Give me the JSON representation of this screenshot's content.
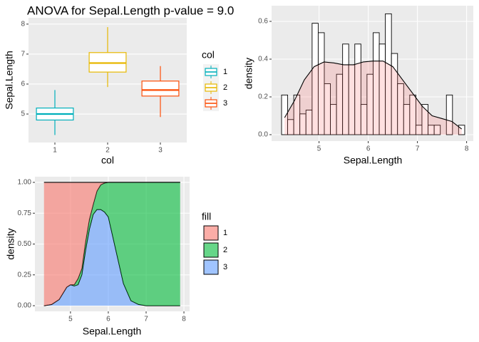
{
  "chart_data": [
    {
      "type": "boxplot",
      "title": "ANOVA for Sepal.Length p-value = 9.0",
      "x_label": "col",
      "y_label": "Sepal.Length",
      "legend_title": "col",
      "categories": [
        "1",
        "2",
        "3"
      ],
      "colors": [
        "#00AFBB",
        "#E7B800",
        "#FC4E07"
      ],
      "boxes": [
        {
          "min": 4.3,
          "q1": 4.8,
          "median": 5.0,
          "q3": 5.2,
          "max": 5.8
        },
        {
          "min": 5.9,
          "q1": 6.4,
          "median": 6.7,
          "q3": 7.05,
          "max": 7.9
        },
        {
          "min": 4.9,
          "q1": 5.6,
          "median": 5.8,
          "q3": 6.1,
          "max": 6.6
        }
      ],
      "ylim": [
        4.05,
        8.21
      ],
      "yticks": [
        5,
        6,
        7,
        8
      ],
      "grid": true
    },
    {
      "type": "histogram",
      "x_label": "Sepal.Length",
      "y_label": "density",
      "bins": [
        4.238,
        4.362,
        4.486,
        4.61,
        4.734,
        4.859,
        4.983,
        5.107,
        5.231,
        5.355,
        5.479,
        5.603,
        5.727,
        5.851,
        5.975,
        6.1,
        6.224,
        6.348,
        6.472,
        6.596,
        6.72,
        6.844,
        6.968,
        7.092,
        7.216,
        7.341,
        7.465,
        7.589,
        7.713,
        7.837,
        7.961
      ],
      "values": [
        0.21,
        0.08,
        0.21,
        0.11,
        0.13,
        0.59,
        0.54,
        0.27,
        0.16,
        0.32,
        0.48,
        0.37,
        0.48,
        0.16,
        0.32,
        0.54,
        0.48,
        0.64,
        0.43,
        0.27,
        0.16,
        0.21,
        0.05,
        0.16,
        0.05,
        0.05,
        0,
        0.21,
        0,
        0.05
      ],
      "bar_color": "#FFFFFF",
      "edge_color": "#000000",
      "density": {
        "x": [
          4.3,
          4.5,
          4.7,
          4.9,
          5.1,
          5.3,
          5.5,
          5.7,
          5.9,
          6.1,
          6.3,
          6.5,
          6.7,
          6.9,
          7.1,
          7.3,
          7.5,
          7.7,
          7.9
        ],
        "values": [
          0.09,
          0.18,
          0.29,
          0.36,
          0.385,
          0.38,
          0.37,
          0.37,
          0.385,
          0.39,
          0.39,
          0.36,
          0.29,
          0.22,
          0.15,
          0.1,
          0.085,
          0.07,
          0.03
        ],
        "color": "#FF6666"
      },
      "xlim": [
        4.035,
        8.136
      ],
      "ylim": [
        -0.034,
        0.683
      ],
      "xticks": [
        5,
        6,
        7,
        8
      ],
      "yticks": [
        {
          "value": 0,
          "label": "0.0"
        },
        0.2,
        0.4,
        0.6
      ],
      "grid": true
    },
    {
      "type": "stacked_area",
      "x_label": "Sepal.Length",
      "y_label": "density",
      "legend_title": "fill",
      "x": [
        4.3,
        4.5,
        4.7,
        4.9,
        5.0,
        5.1,
        5.2,
        5.3,
        5.4,
        5.5,
        5.6,
        5.7,
        5.8,
        5.9,
        6.0,
        6.2,
        6.4,
        6.6,
        6.8,
        7.0,
        7.4,
        7.9
      ],
      "series": [
        {
          "name": "1",
          "color": "#F8766D",
          "values": [
            1,
            0.99,
            0.95,
            0.85,
            0.83,
            0.83,
            0.78,
            0.7,
            0.48,
            0.3,
            0.18,
            0.07,
            0.02,
            0.005,
            0,
            0,
            0,
            0,
            0,
            0,
            0,
            0
          ]
        },
        {
          "name": "2",
          "color": "#00BA38",
          "values": [
            0,
            0,
            0,
            0,
            0,
            0.01,
            0.05,
            0.05,
            0.07,
            0.08,
            0.08,
            0.15,
            0.2,
            0.235,
            0.28,
            0.55,
            0.82,
            0.96,
            0.99,
            1,
            1,
            1
          ]
        },
        {
          "name": "3",
          "color": "#619CFF",
          "values": [
            0,
            0.01,
            0.05,
            0.15,
            0.17,
            0.16,
            0.17,
            0.25,
            0.45,
            0.62,
            0.74,
            0.78,
            0.78,
            0.76,
            0.72,
            0.45,
            0.18,
            0.04,
            0.01,
            0,
            0,
            0
          ]
        }
      ],
      "xlim": [
        4.06,
        8.15
      ],
      "ylim": [
        -0.046,
        1.046
      ],
      "xticks": [
        5,
        6,
        7,
        8
      ],
      "yticks": [
        {
          "value": 0,
          "label": "0.00"
        },
        0.25,
        {
          "value": 0.5,
          "label": "0.50"
        },
        0.75,
        {
          "value": 1,
          "label": "1.00"
        }
      ],
      "grid": true
    }
  ]
}
